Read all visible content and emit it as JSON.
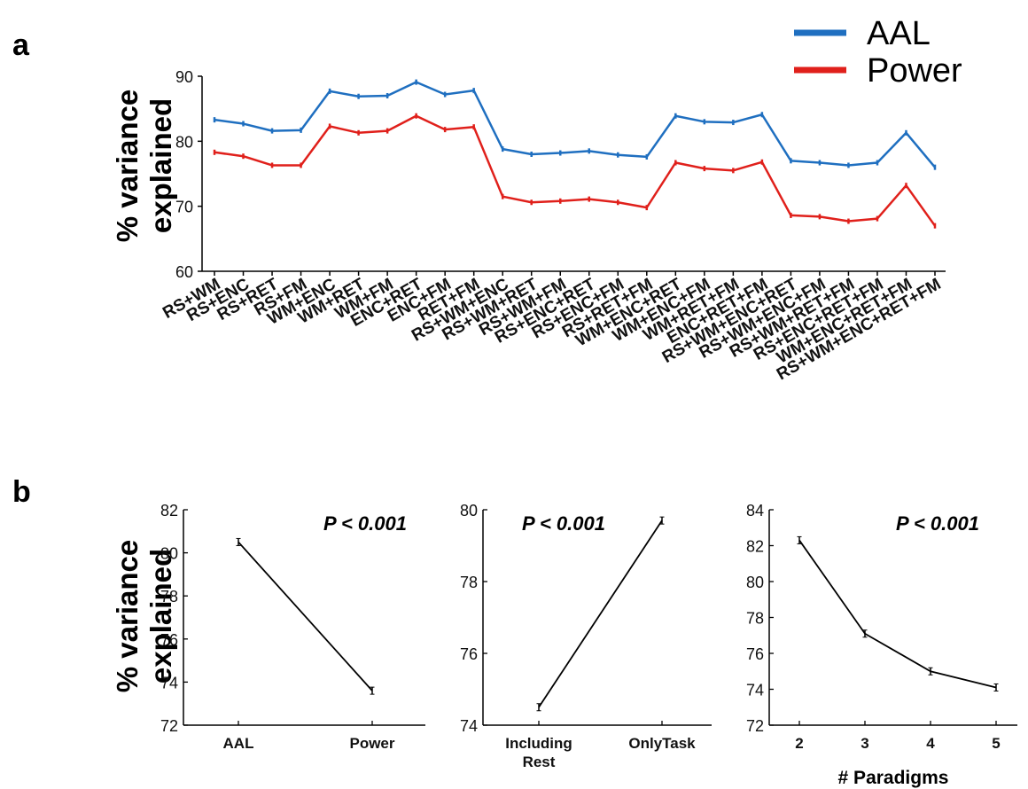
{
  "panel_a_letter": "a",
  "panel_b_letter": "b",
  "chart_data": [
    {
      "type": "line",
      "panel": "a",
      "ylabel": "% variance explained",
      "ylim": [
        60,
        90
      ],
      "yticks": [
        60,
        70,
        80,
        90
      ],
      "legend_placement": "top-right",
      "categories": [
        "RS+WM",
        "RS+ENC",
        "RS+RET",
        "RS+FM",
        "WM+ENC",
        "WM+RET",
        "WM+FM",
        "ENC+RET",
        "ENC+FM",
        "RET+FM",
        "RS+WM+ENC",
        "RS+WM+RET",
        "RS+WM+FM",
        "RS+ENC+RET",
        "RS+ENC+FM",
        "RS+RET+FM",
        "WM+ENC+RET",
        "WM+ENC+FM",
        "WM+RET+FM",
        "ENC+RET+FM",
        "RS+WM+ENC+RET",
        "RS+WM+ENC+FM",
        "RS+WM+RET+FM",
        "RS+ENC+RET+FM",
        "WM+ENC+RET+FM",
        "RS+WM+ENC+RET+FM"
      ],
      "series": [
        {
          "name": "AAL",
          "color": "#1f6fc0",
          "values": [
            83.3,
            82.7,
            81.6,
            81.7,
            87.7,
            86.9,
            87.0,
            89.1,
            87.2,
            87.8,
            78.8,
            78.0,
            78.2,
            78.5,
            77.9,
            77.6,
            83.9,
            83.0,
            82.9,
            84.1,
            77.0,
            76.7,
            76.3,
            76.7,
            81.3,
            76.0
          ]
        },
        {
          "name": "Power",
          "color": "#e0201b",
          "values": [
            78.3,
            77.7,
            76.3,
            76.3,
            82.3,
            81.3,
            81.6,
            83.9,
            81.8,
            82.2,
            71.5,
            70.6,
            70.8,
            71.1,
            70.6,
            69.8,
            76.7,
            75.8,
            75.5,
            76.8,
            68.6,
            68.4,
            67.7,
            68.1,
            73.2,
            67.0
          ]
        }
      ]
    },
    {
      "type": "line",
      "panel": "b1",
      "ylabel": "% variance explained",
      "ylim": [
        72,
        82
      ],
      "yticks": [
        72,
        74,
        76,
        78,
        80,
        82
      ],
      "categories": [
        "AAL",
        "Power"
      ],
      "values": [
        80.5,
        73.6
      ],
      "annotation": "P < 0.001"
    },
    {
      "type": "line",
      "panel": "b2",
      "ylim": [
        74,
        80
      ],
      "yticks": [
        74,
        76,
        78,
        80
      ],
      "categories": [
        "Including Rest",
        "OnlyTask"
      ],
      "values": [
        74.5,
        79.7
      ],
      "annotation": "P < 0.001"
    },
    {
      "type": "line",
      "panel": "b3",
      "xlabel": "# Paradigms",
      "ylim": [
        72,
        84
      ],
      "yticks": [
        72,
        74,
        76,
        78,
        80,
        82,
        84
      ],
      "categories": [
        "2",
        "3",
        "4",
        "5"
      ],
      "values": [
        82.3,
        77.1,
        75.0,
        74.1
      ],
      "annotation": "P < 0.001"
    }
  ]
}
